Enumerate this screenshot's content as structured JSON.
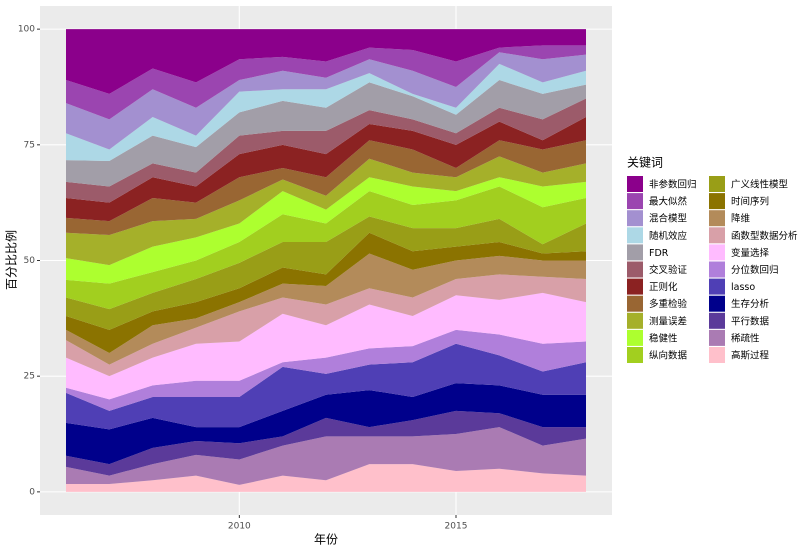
{
  "chart_data": {
    "type": "stacked_area",
    "x_label": "年份",
    "y_label": "百分比比例",
    "legend_title": "关键词",
    "x": [
      2006,
      2007,
      2008,
      2009,
      2010,
      2011,
      2012,
      2013,
      2014,
      2015,
      2016,
      2017,
      2018
    ],
    "xlim": [
      2005.4,
      2018.6
    ],
    "xticks": [
      2010,
      2015
    ],
    "ylim": [
      -5,
      105
    ],
    "yticks": [
      0,
      25,
      50,
      75,
      100
    ],
    "grid": true,
    "legend_position": "right",
    "series": [
      {
        "name": "非参数回归",
        "color": "#8b008b",
        "values": [
          11,
          14,
          8.5,
          11.5,
          6.5,
          6,
          7,
          4,
          4.5,
          7,
          4,
          3.5,
          3.5
        ]
      },
      {
        "name": "最大似然",
        "color": "#9b45b0",
        "values": [
          5,
          5.5,
          4.5,
          5.5,
          4.5,
          3,
          3.5,
          2.5,
          4.5,
          5.5,
          1,
          3,
          2
        ]
      },
      {
        "name": "混合模型",
        "color": "#a390d0",
        "values": [
          6.5,
          6.5,
          6,
          6,
          2.5,
          4,
          2.5,
          3,
          5,
          4.5,
          2.5,
          5,
          3.5
        ]
      },
      {
        "name": "随机效应",
        "color": "#add8e6",
        "values": [
          5.8,
          2.5,
          4,
          2.5,
          4.5,
          2.5,
          4,
          2,
          0.5,
          1.5,
          3.5,
          2.5,
          3
        ]
      },
      {
        "name": "FDR",
        "color": "#a29ea8",
        "values": [
          4.7,
          5.5,
          6,
          5.5,
          5,
          6.5,
          5,
          6,
          5,
          4,
          6,
          5.5,
          3
        ]
      },
      {
        "name": "交叉验证",
        "color": "#9c5b6a",
        "values": [
          3.5,
          3.5,
          3,
          3,
          4,
          3,
          5,
          3,
          2.5,
          2.5,
          3,
          4.5,
          4
        ]
      },
      {
        "name": "正则化",
        "color": "#8b2222",
        "values": [
          4.3,
          4,
          4.5,
          3.5,
          5,
          5,
          5,
          3.5,
          4,
          5,
          4,
          2,
          5
        ]
      },
      {
        "name": "多重检验",
        "color": "#996633",
        "values": [
          3.2,
          3,
          5,
          3.5,
          5,
          2.5,
          4,
          4,
          5,
          2,
          3.5,
          5,
          5
        ]
      },
      {
        "name": "测量误差",
        "color": "#a5b02a",
        "values": [
          5.5,
          6.5,
          5.5,
          4,
          5,
          2.5,
          3,
          4,
          3,
          3,
          4.5,
          3,
          4
        ]
      },
      {
        "name": "稳健性",
        "color": "#adff2f",
        "values": [
          4.7,
          4,
          5.5,
          5,
          4,
          5,
          3,
          3,
          4,
          2,
          2,
          4.5,
          3.5
        ]
      },
      {
        "name": "纵向数据",
        "color": "#a2cf1f",
        "values": [
          3.8,
          5.5,
          4.5,
          4,
          4.5,
          6,
          4,
          5.5,
          5,
          6,
          7,
          8,
          5.5
        ]
      },
      {
        "name": "广义线性模型",
        "color": "#999e17",
        "values": [
          4,
          4.5,
          4,
          5,
          5.5,
          5.5,
          7,
          3.5,
          5,
          4,
          5,
          2,
          6
        ]
      },
      {
        "name": "时间序列",
        "color": "#8b7300",
        "values": [
          3,
          5,
          3,
          3.5,
          3,
          3.5,
          2.5,
          4.5,
          4,
          3,
          3,
          1.5,
          2
        ]
      },
      {
        "name": "降维",
        "color": "#b38b5a",
        "values": [
          2.2,
          2.5,
          4,
          2,
          2,
          3,
          4,
          7.5,
          6,
          4,
          4,
          3.5,
          4
        ]
      },
      {
        "name": "函数型数据分析",
        "color": "#d8a0a8",
        "values": [
          3.8,
          2.5,
          3,
          3.5,
          6.5,
          3.5,
          4.5,
          3.5,
          4,
          3.5,
          5.5,
          3.5,
          5
        ]
      },
      {
        "name": "变量选择",
        "color": "#ffbbff",
        "values": [
          6.5,
          5,
          6,
          8,
          8.5,
          10.5,
          7,
          9.5,
          6.5,
          7.5,
          7.5,
          11,
          8.5
        ]
      },
      {
        "name": "分位数回归",
        "color": "#b07fdb",
        "values": [
          1.1,
          2.5,
          2.5,
          3.5,
          3.5,
          1,
          3.5,
          3.5,
          3.5,
          3,
          4.5,
          6,
          4.5
        ]
      },
      {
        "name": "lasso",
        "color": "#4f3fb5",
        "values": [
          6.5,
          4,
          4.5,
          6.5,
          6.5,
          9.5,
          4.5,
          5.5,
          7.5,
          8.5,
          6.5,
          5,
          7
        ]
      },
      {
        "name": "生存分析",
        "color": "#00008b",
        "values": [
          7.1,
          7.5,
          6.5,
          3,
          3.5,
          5.5,
          5,
          8,
          5,
          6,
          6,
          7,
          7
        ]
      },
      {
        "name": "平行数据",
        "color": "#5b3a9a",
        "values": [
          2.4,
          2.5,
          3.5,
          3,
          3.5,
          2,
          4,
          2,
          3.5,
          5,
          3,
          4,
          2.5
        ]
      },
      {
        "name": "稀疏性",
        "color": "#aa7bb3",
        "values": [
          3.7,
          1.8,
          3.5,
          4.5,
          5.5,
          6.5,
          9.5,
          6,
          6,
          8,
          9,
          6,
          8
        ]
      },
      {
        "name": "高斯过程",
        "color": "#ffc0cb",
        "values": [
          1.7,
          1.7,
          2.5,
          3.5,
          1.5,
          3.5,
          2.5,
          6,
          6,
          4.5,
          5,
          4,
          3.5
        ]
      }
    ]
  }
}
